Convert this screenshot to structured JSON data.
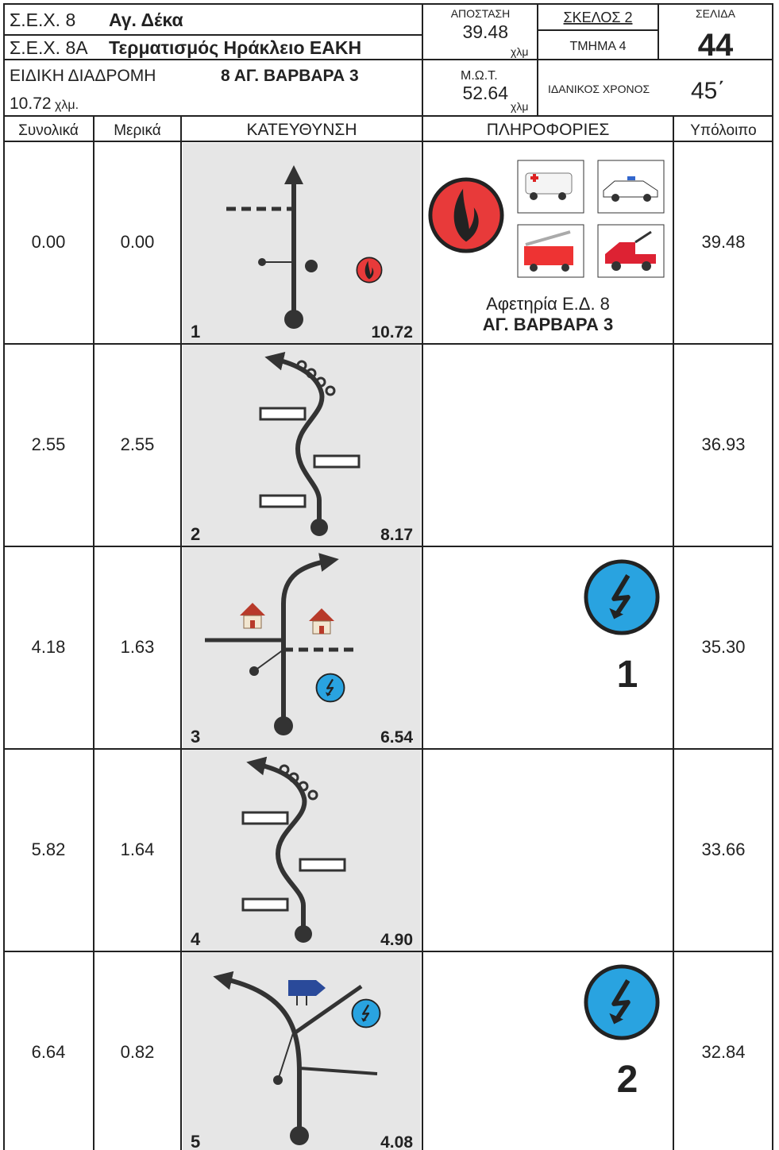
{
  "header": {
    "sex8_label": "Σ.Ε.Χ. 8",
    "sex8_name": "Αγ. Δέκα",
    "sex8a_label": "Σ.Ε.Χ. 8Α",
    "sex8a_name": "Τερματισμός Ηράκλειο ΕΑΚΗ",
    "stage_label": "ΕΙΔΙΚΗ ΔΙΑΔΡΟΜΗ",
    "stage_name": "8 ΑΓ. ΒΑΡΒΑΡΑ 3",
    "stage_length": "10.72",
    "stage_unit": "χλμ.",
    "distance_label": "ΑΠΟΣΤΑΣΗ",
    "distance": "39.48",
    "distance_unit": "χλμ",
    "mot_label": "Μ.Ω.Τ.",
    "mot": "52.64",
    "mot_unit": "χλμ",
    "leg": "ΣΚΕΛΟΣ 2",
    "section": "ΤΜΗΜΑ 4",
    "ideal_label": "ΙΔΑΝΙΚΟΣ ΧΡΟΝΟΣ",
    "ideal": "45΄",
    "page_label": "ΣΕΛΙΔΑ",
    "page": "44"
  },
  "table": {
    "columns": [
      "Συνολικά",
      "Μερικά",
      "ΚΑΤΕΥΘΥΝΣΗ",
      "ΠΛΗΡΟΦΟΡΙΕΣ",
      "Υπόλοιπο"
    ],
    "rows": [
      {
        "total": "0.00",
        "partial": "0.00",
        "number": "1",
        "stage_remaining": "10.72",
        "remaining": "39.48",
        "info": [
          "Αφετηρία Ε.Δ. 8",
          "ΑΓ. ΒΑΡΒΑΡΑ 3"
        ]
      },
      {
        "total": "2.55",
        "partial": "2.55",
        "number": "2",
        "stage_remaining": "8.17",
        "remaining": "36.93"
      },
      {
        "total": "4.18",
        "partial": "1.63",
        "number": "3",
        "stage_remaining": "6.54",
        "remaining": "35.30",
        "badge": "1"
      },
      {
        "total": "5.82",
        "partial": "1.64",
        "number": "4",
        "stage_remaining": "4.90",
        "remaining": "33.66"
      },
      {
        "total": "6.64",
        "partial": "0.82",
        "number": "5",
        "stage_remaining": "4.08",
        "remaining": "32.84",
        "badge": "2"
      }
    ]
  }
}
